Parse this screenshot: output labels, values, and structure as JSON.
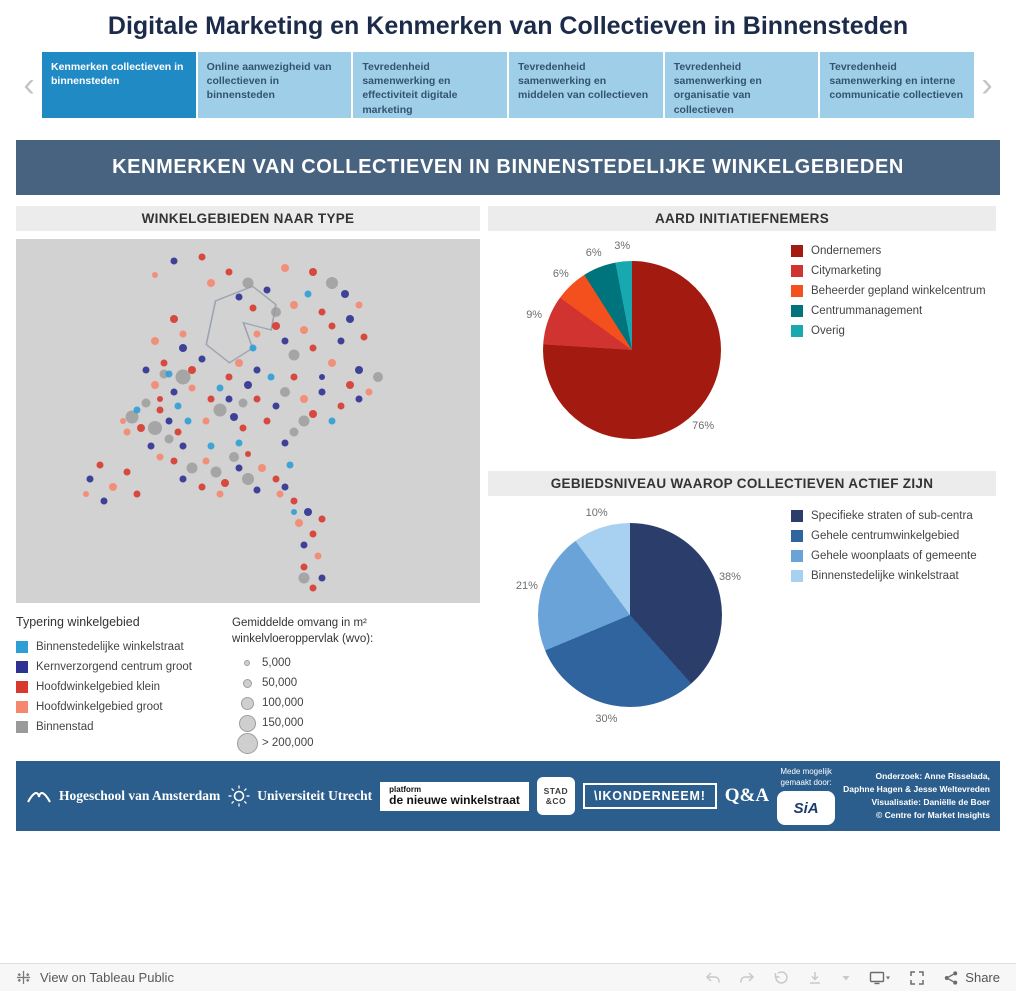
{
  "theme": {
    "accent_blue": "#1f8ac4",
    "tab_inactive_blue": "#9fcfe8",
    "banner_bg": "#486380",
    "footer_bg": "#2b5e8d",
    "map_bg": "#d2d2d2",
    "header_strip_bg": "#ececec"
  },
  "title": "Digitale Marketing en Kenmerken van Collectieven in Binnensteden",
  "tabs": [
    {
      "label": "Kenmerken collectieven in binnensteden",
      "active": true
    },
    {
      "label": "Online aanwezigheid van collectieven in binnensteden",
      "active": false
    },
    {
      "label": "Tevredenheid samenwerking en effectiviteit digitale marketing",
      "active": false
    },
    {
      "label": "Tevredenheid samenwerking en middelen van collectieven",
      "active": false
    },
    {
      "label": "Tevredenheid samenwerking en organisatie van collectieven",
      "active": false
    },
    {
      "label": "Tevredenheid samenwerking en interne communicatie collectieven",
      "active": false
    }
  ],
  "banner": "KENMERKEN VAN COLLECTIEVEN IN BINNENSTEDELIJKE WINKELGEBIEDEN",
  "map_section": {
    "title": "WINKELGEBIEDEN NAAR TYPE",
    "type_legend": {
      "title": "Typering winkelgebied",
      "items": [
        {
          "key": "lb",
          "label": "Binnenstedelijke winkelstraat"
        },
        {
          "key": "db",
          "label": "Kernverzorgend centrum groot"
        },
        {
          "key": "r",
          "label": "Hoofdwinkelgebied klein"
        },
        {
          "key": "s",
          "label": "Hoofdwinkelgebied groot"
        },
        {
          "key": "g",
          "label": "Binnenstad"
        }
      ]
    },
    "size_legend": {
      "title_line1": "Gemiddelde omvang in m²",
      "title_line2": "winkelvloeroppervlak (wvo):",
      "labels": [
        "5,000",
        "50,000",
        "100,000",
        "150,000",
        "> 200,000"
      ]
    }
  },
  "chart_data": [
    {
      "type": "scatter",
      "title": "WINKELGEBIEDEN NAAR TYPE",
      "description": "Kaart van Nederland; elk punt is een winkelgebied, kleur = typering, grootte = gemiddeld winkelvloeroppervlak",
      "colors": {
        "lb": "#2e9fd4",
        "db": "#2e3191",
        "r": "#d7392e",
        "s": "#f5876f",
        "g": "#9a9a9a"
      },
      "points": [
        [
          36,
          38,
          15,
          "g"
        ],
        [
          30,
          52,
          14,
          "g"
        ],
        [
          25,
          49,
          13,
          "g"
        ],
        [
          44,
          47,
          13,
          "g"
        ],
        [
          68,
          12,
          12,
          "g"
        ],
        [
          50,
          66,
          12,
          "g"
        ],
        [
          43,
          64,
          11,
          "g"
        ],
        [
          38,
          63,
          11,
          "g"
        ],
        [
          62,
          50,
          11,
          "g"
        ],
        [
          60,
          32,
          11,
          "g"
        ],
        [
          50,
          12,
          11,
          "g"
        ],
        [
          78,
          38,
          10,
          "g"
        ],
        [
          62,
          93,
          11,
          "g"
        ],
        [
          47,
          60,
          10,
          "g"
        ],
        [
          58,
          42,
          10,
          "g"
        ],
        [
          49,
          45,
          9,
          "g"
        ],
        [
          28,
          45,
          9,
          "g"
        ],
        [
          33,
          55,
          9,
          "g"
        ],
        [
          60,
          53,
          9,
          "g"
        ],
        [
          32,
          37,
          9,
          "g"
        ],
        [
          56,
          20,
          10,
          "g"
        ],
        [
          64,
          9,
          8,
          "r"
        ],
        [
          71,
          15,
          8,
          "db"
        ],
        [
          58,
          8,
          8,
          "s"
        ],
        [
          46,
          9,
          7,
          "r"
        ],
        [
          54,
          14,
          7,
          "db"
        ],
        [
          60,
          18,
          8,
          "s"
        ],
        [
          66,
          20,
          7,
          "r"
        ],
        [
          72,
          22,
          8,
          "db"
        ],
        [
          56,
          24,
          8,
          "r"
        ],
        [
          62,
          25,
          8,
          "s"
        ],
        [
          70,
          28,
          7,
          "db"
        ],
        [
          48,
          16,
          7,
          "db"
        ],
        [
          42,
          12,
          8,
          "s"
        ],
        [
          63,
          15,
          7,
          "lb"
        ],
        [
          51,
          19,
          7,
          "r"
        ],
        [
          74,
          18,
          7,
          "s"
        ],
        [
          68,
          24,
          7,
          "r"
        ],
        [
          75,
          27,
          7,
          "r"
        ],
        [
          58,
          28,
          7,
          "db"
        ],
        [
          52,
          26,
          7,
          "s"
        ],
        [
          34,
          6,
          7,
          "db"
        ],
        [
          40,
          5,
          7,
          "r"
        ],
        [
          30,
          10,
          6,
          "s"
        ],
        [
          34,
          22,
          8,
          "r"
        ],
        [
          30,
          28,
          8,
          "s"
        ],
        [
          36,
          30,
          8,
          "db"
        ],
        [
          32,
          34,
          7,
          "r"
        ],
        [
          33,
          37,
          7,
          "lb"
        ],
        [
          38,
          36,
          8,
          "r"
        ],
        [
          30,
          40,
          8,
          "s"
        ],
        [
          34,
          42,
          7,
          "db"
        ],
        [
          38,
          41,
          7,
          "s"
        ],
        [
          28,
          36,
          7,
          "db"
        ],
        [
          36,
          26,
          7,
          "s"
        ],
        [
          40,
          33,
          7,
          "db"
        ],
        [
          48,
          34,
          8,
          "s"
        ],
        [
          52,
          36,
          7,
          "db"
        ],
        [
          46,
          38,
          7,
          "r"
        ],
        [
          50,
          40,
          8,
          "db"
        ],
        [
          51,
          30,
          7,
          "lb"
        ],
        [
          55,
          38,
          7,
          "lb"
        ],
        [
          64,
          30,
          7,
          "r"
        ],
        [
          68,
          34,
          8,
          "s"
        ],
        [
          74,
          36,
          8,
          "db"
        ],
        [
          72,
          40,
          8,
          "r"
        ],
        [
          66,
          42,
          7,
          "db"
        ],
        [
          62,
          44,
          8,
          "s"
        ],
        [
          70,
          46,
          7,
          "r"
        ],
        [
          74,
          44,
          7,
          "db"
        ],
        [
          64,
          48,
          8,
          "r"
        ],
        [
          56,
          46,
          7,
          "db"
        ],
        [
          54,
          50,
          7,
          "r"
        ],
        [
          58,
          56,
          7,
          "db"
        ],
        [
          68,
          50,
          7,
          "lb"
        ],
        [
          76,
          42,
          7,
          "s"
        ],
        [
          60,
          38,
          7,
          "r"
        ],
        [
          66,
          38,
          6,
          "db"
        ],
        [
          46,
          44,
          7,
          "db"
        ],
        [
          42,
          44,
          7,
          "r"
        ],
        [
          47,
          49,
          8,
          "db"
        ],
        [
          41,
          50,
          7,
          "s"
        ],
        [
          52,
          44,
          7,
          "r"
        ],
        [
          44,
          41,
          7,
          "lb"
        ],
        [
          49,
          52,
          7,
          "r"
        ],
        [
          27,
          52,
          8,
          "r"
        ],
        [
          33,
          50,
          7,
          "db"
        ],
        [
          35,
          53,
          7,
          "r"
        ],
        [
          29,
          57,
          7,
          "db"
        ],
        [
          37,
          50,
          7,
          "lb"
        ],
        [
          31,
          47,
          7,
          "r"
        ],
        [
          24,
          53,
          7,
          "s"
        ],
        [
          36,
          57,
          7,
          "db"
        ],
        [
          26,
          47,
          7,
          "lb"
        ],
        [
          35,
          46,
          7,
          "lb"
        ],
        [
          23,
          50,
          6,
          "s"
        ],
        [
          31,
          44,
          6,
          "r"
        ],
        [
          18,
          62,
          7,
          "r"
        ],
        [
          16,
          66,
          7,
          "db"
        ],
        [
          21,
          68,
          8,
          "s"
        ],
        [
          24,
          64,
          7,
          "r"
        ],
        [
          19,
          72,
          7,
          "db"
        ],
        [
          26,
          70,
          7,
          "r"
        ],
        [
          15,
          70,
          6,
          "s"
        ],
        [
          34,
          61,
          7,
          "r"
        ],
        [
          36,
          66,
          7,
          "db"
        ],
        [
          41,
          61,
          7,
          "s"
        ],
        [
          45,
          67,
          8,
          "r"
        ],
        [
          48,
          63,
          7,
          "db"
        ],
        [
          53,
          63,
          8,
          "s"
        ],
        [
          56,
          66,
          7,
          "r"
        ],
        [
          52,
          69,
          7,
          "db"
        ],
        [
          44,
          70,
          7,
          "s"
        ],
        [
          40,
          68,
          7,
          "r"
        ],
        [
          57,
          70,
          7,
          "s"
        ],
        [
          31,
          60,
          7,
          "s"
        ],
        [
          42,
          57,
          7,
          "lb"
        ],
        [
          59,
          62,
          7,
          "lb"
        ],
        [
          48,
          56,
          7,
          "lb"
        ],
        [
          50,
          59,
          6,
          "r"
        ],
        [
          60,
          72,
          7,
          "r"
        ],
        [
          63,
          75,
          8,
          "db"
        ],
        [
          61,
          78,
          8,
          "s"
        ],
        [
          64,
          81,
          7,
          "r"
        ],
        [
          62,
          84,
          7,
          "db"
        ],
        [
          65,
          87,
          7,
          "s"
        ],
        [
          62,
          90,
          7,
          "r"
        ],
        [
          66,
          93,
          7,
          "db"
        ],
        [
          64,
          96,
          7,
          "r"
        ],
        [
          58,
          68,
          7,
          "db"
        ],
        [
          66,
          77,
          7,
          "r"
        ],
        [
          60,
          75,
          6,
          "lb"
        ]
      ]
    },
    {
      "type": "pie",
      "title": "AARD INITIATIEFNEMERS",
      "labels": [
        "Ondernemers",
        "Citymarketing",
        "Beheerder gepland winkelcentrum",
        "Centrummanagement",
        "Overig"
      ],
      "values": [
        76,
        9,
        6,
        6,
        3
      ],
      "unit": "%",
      "colors": [
        "#a31a10",
        "#d03330",
        "#f4501e",
        "#00747c",
        "#17a8b0"
      ],
      "legend_position": "right"
    },
    {
      "type": "pie",
      "title": "GEBIEDSNIVEAU WAAROP COLLECTIEVEN ACTIEF ZIJN",
      "labels": [
        "Specifieke straten of sub-centra",
        "Gehele centrumwinkelgebied",
        "Gehele woonplaats of gemeente",
        "Binnenstedelijke winkelstraat"
      ],
      "values": [
        38,
        30,
        21,
        10
      ],
      "unit": "%",
      "colors": [
        "#2b3d6b",
        "#2f649e",
        "#6aa3d8",
        "#a8d0f0"
      ],
      "legend_position": "right"
    }
  ],
  "footer": {
    "logos": {
      "hva": "Hogeschool van Amsterdam",
      "uu": "Universiteit Utrecht",
      "pdnw_top": "platform",
      "pdnw_main": "de nieuwe winkelstraat",
      "stadco_line1": "STAD",
      "stadco_line2": "&CO",
      "ik": "\\IKONDERNEEM!",
      "qa": "Q&A",
      "sia_caption_1": "Mede mogelijk",
      "sia_caption_2": "gemaakt door:",
      "sia": "SiA"
    },
    "credits": [
      "Onderzoek: Anne Risselada,",
      "Daphne Hagen & Jesse Weltevreden",
      "Visualisatie: Daniëlle de Boer",
      "© Centre for Market Insights"
    ]
  },
  "toolbar": {
    "view_label": "View on Tableau Public",
    "share_label": "Share"
  }
}
